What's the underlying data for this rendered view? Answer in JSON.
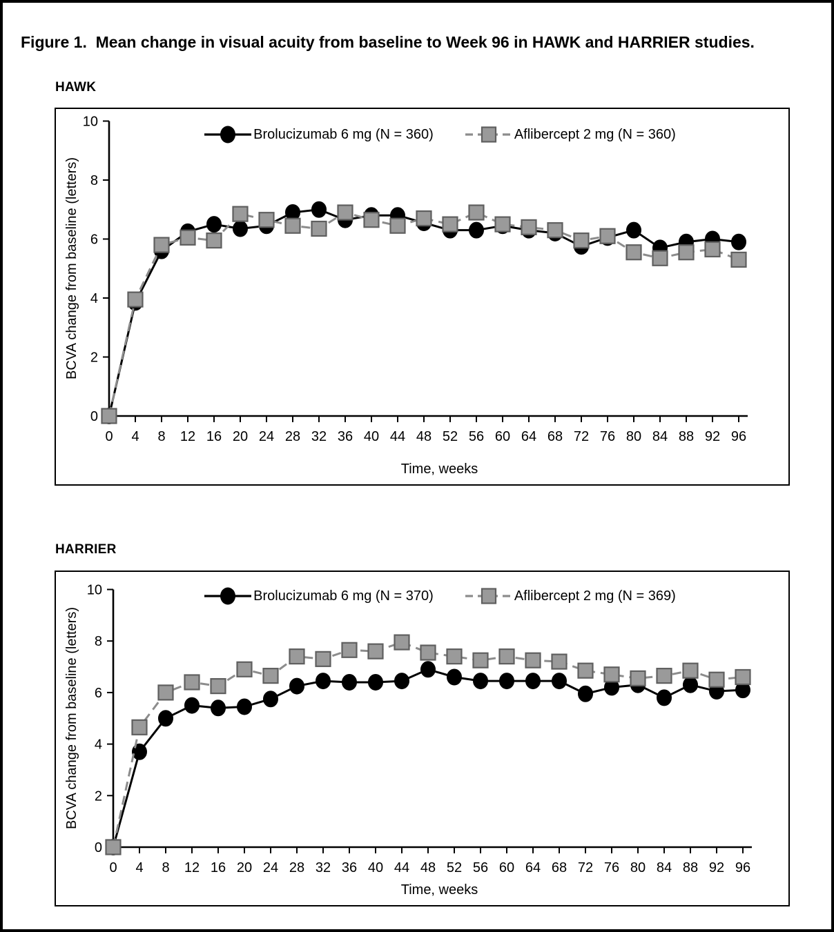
{
  "figure": {
    "title": "Figure 1.  Mean change in visual acuity from baseline to Week 96 in HAWK and HARRIER studies."
  },
  "colors": {
    "brolucizumab_line": "#000000",
    "aflibercept_line": "#8c8c8c",
    "aflibercept_fill": "#9a9a9a",
    "aflibercept_edge": "#5f5f5f",
    "axis": "#000000"
  },
  "chart_data": [
    {
      "id": "hawk",
      "panel_label": "HAWK",
      "type": "line",
      "xlabel": "Time, weeks",
      "ylabel": "BCVA change from baseline (letters)",
      "ylim": [
        0,
        10
      ],
      "yticks": [
        0,
        2,
        4,
        6,
        8,
        10
      ],
      "grid": false,
      "legend_position": "top-center",
      "x": [
        0,
        4,
        8,
        12,
        16,
        20,
        24,
        28,
        32,
        36,
        40,
        44,
        48,
        52,
        56,
        60,
        64,
        68,
        72,
        76,
        80,
        84,
        88,
        92,
        96
      ],
      "series": [
        {
          "name": "Brolucizumab 6 mg (N = 360)",
          "marker": "circle",
          "line": "solid",
          "color": "#000000",
          "values": [
            0,
            3.85,
            5.6,
            6.25,
            6.5,
            6.35,
            6.45,
            6.9,
            7.0,
            6.65,
            6.8,
            6.8,
            6.55,
            6.3,
            6.3,
            6.45,
            6.3,
            6.2,
            5.75,
            6.05,
            6.3,
            5.7,
            5.9,
            6.0,
            5.9
          ]
        },
        {
          "name": "Aflibercept 2 mg (N = 360)",
          "marker": "square",
          "line": "dashed",
          "color": "#8c8c8c",
          "fill": "#9a9a9a",
          "edge": "#5f5f5f",
          "values": [
            0,
            3.95,
            5.8,
            6.05,
            5.95,
            6.85,
            6.65,
            6.45,
            6.35,
            6.9,
            6.65,
            6.45,
            6.7,
            6.5,
            6.9,
            6.5,
            6.4,
            6.3,
            5.95,
            6.1,
            5.55,
            5.35,
            5.55,
            5.65,
            5.3
          ]
        }
      ]
    },
    {
      "id": "harrier",
      "panel_label": "HARRIER",
      "type": "line",
      "xlabel": "Time, weeks",
      "ylabel": "BCVA change from baseline (letters)",
      "ylim": [
        0,
        10
      ],
      "yticks": [
        0,
        2,
        4,
        6,
        8,
        10
      ],
      "grid": false,
      "legend_position": "top-center",
      "x": [
        0,
        4,
        8,
        12,
        16,
        20,
        24,
        28,
        32,
        36,
        40,
        44,
        48,
        52,
        56,
        60,
        64,
        68,
        72,
        76,
        80,
        84,
        88,
        92,
        96
      ],
      "series": [
        {
          "name": "Brolucizumab 6 mg (N = 370)",
          "marker": "circle",
          "line": "solid",
          "color": "#000000",
          "values": [
            0,
            3.7,
            5.0,
            5.5,
            5.4,
            5.45,
            5.75,
            6.25,
            6.45,
            6.4,
            6.4,
            6.45,
            6.9,
            6.6,
            6.45,
            6.45,
            6.45,
            6.45,
            5.95,
            6.2,
            6.3,
            5.8,
            6.3,
            6.05,
            6.1
          ]
        },
        {
          "name": "Aflibercept 2 mg (N = 369)",
          "marker": "square",
          "line": "dashed",
          "color": "#8c8c8c",
          "fill": "#9a9a9a",
          "edge": "#5f5f5f",
          "values": [
            0,
            4.65,
            6.0,
            6.4,
            6.25,
            6.9,
            6.65,
            7.4,
            7.3,
            7.65,
            7.6,
            7.95,
            7.55,
            7.4,
            7.25,
            7.4,
            7.25,
            7.2,
            6.85,
            6.7,
            6.55,
            6.65,
            6.85,
            6.5,
            6.6
          ]
        }
      ]
    }
  ]
}
